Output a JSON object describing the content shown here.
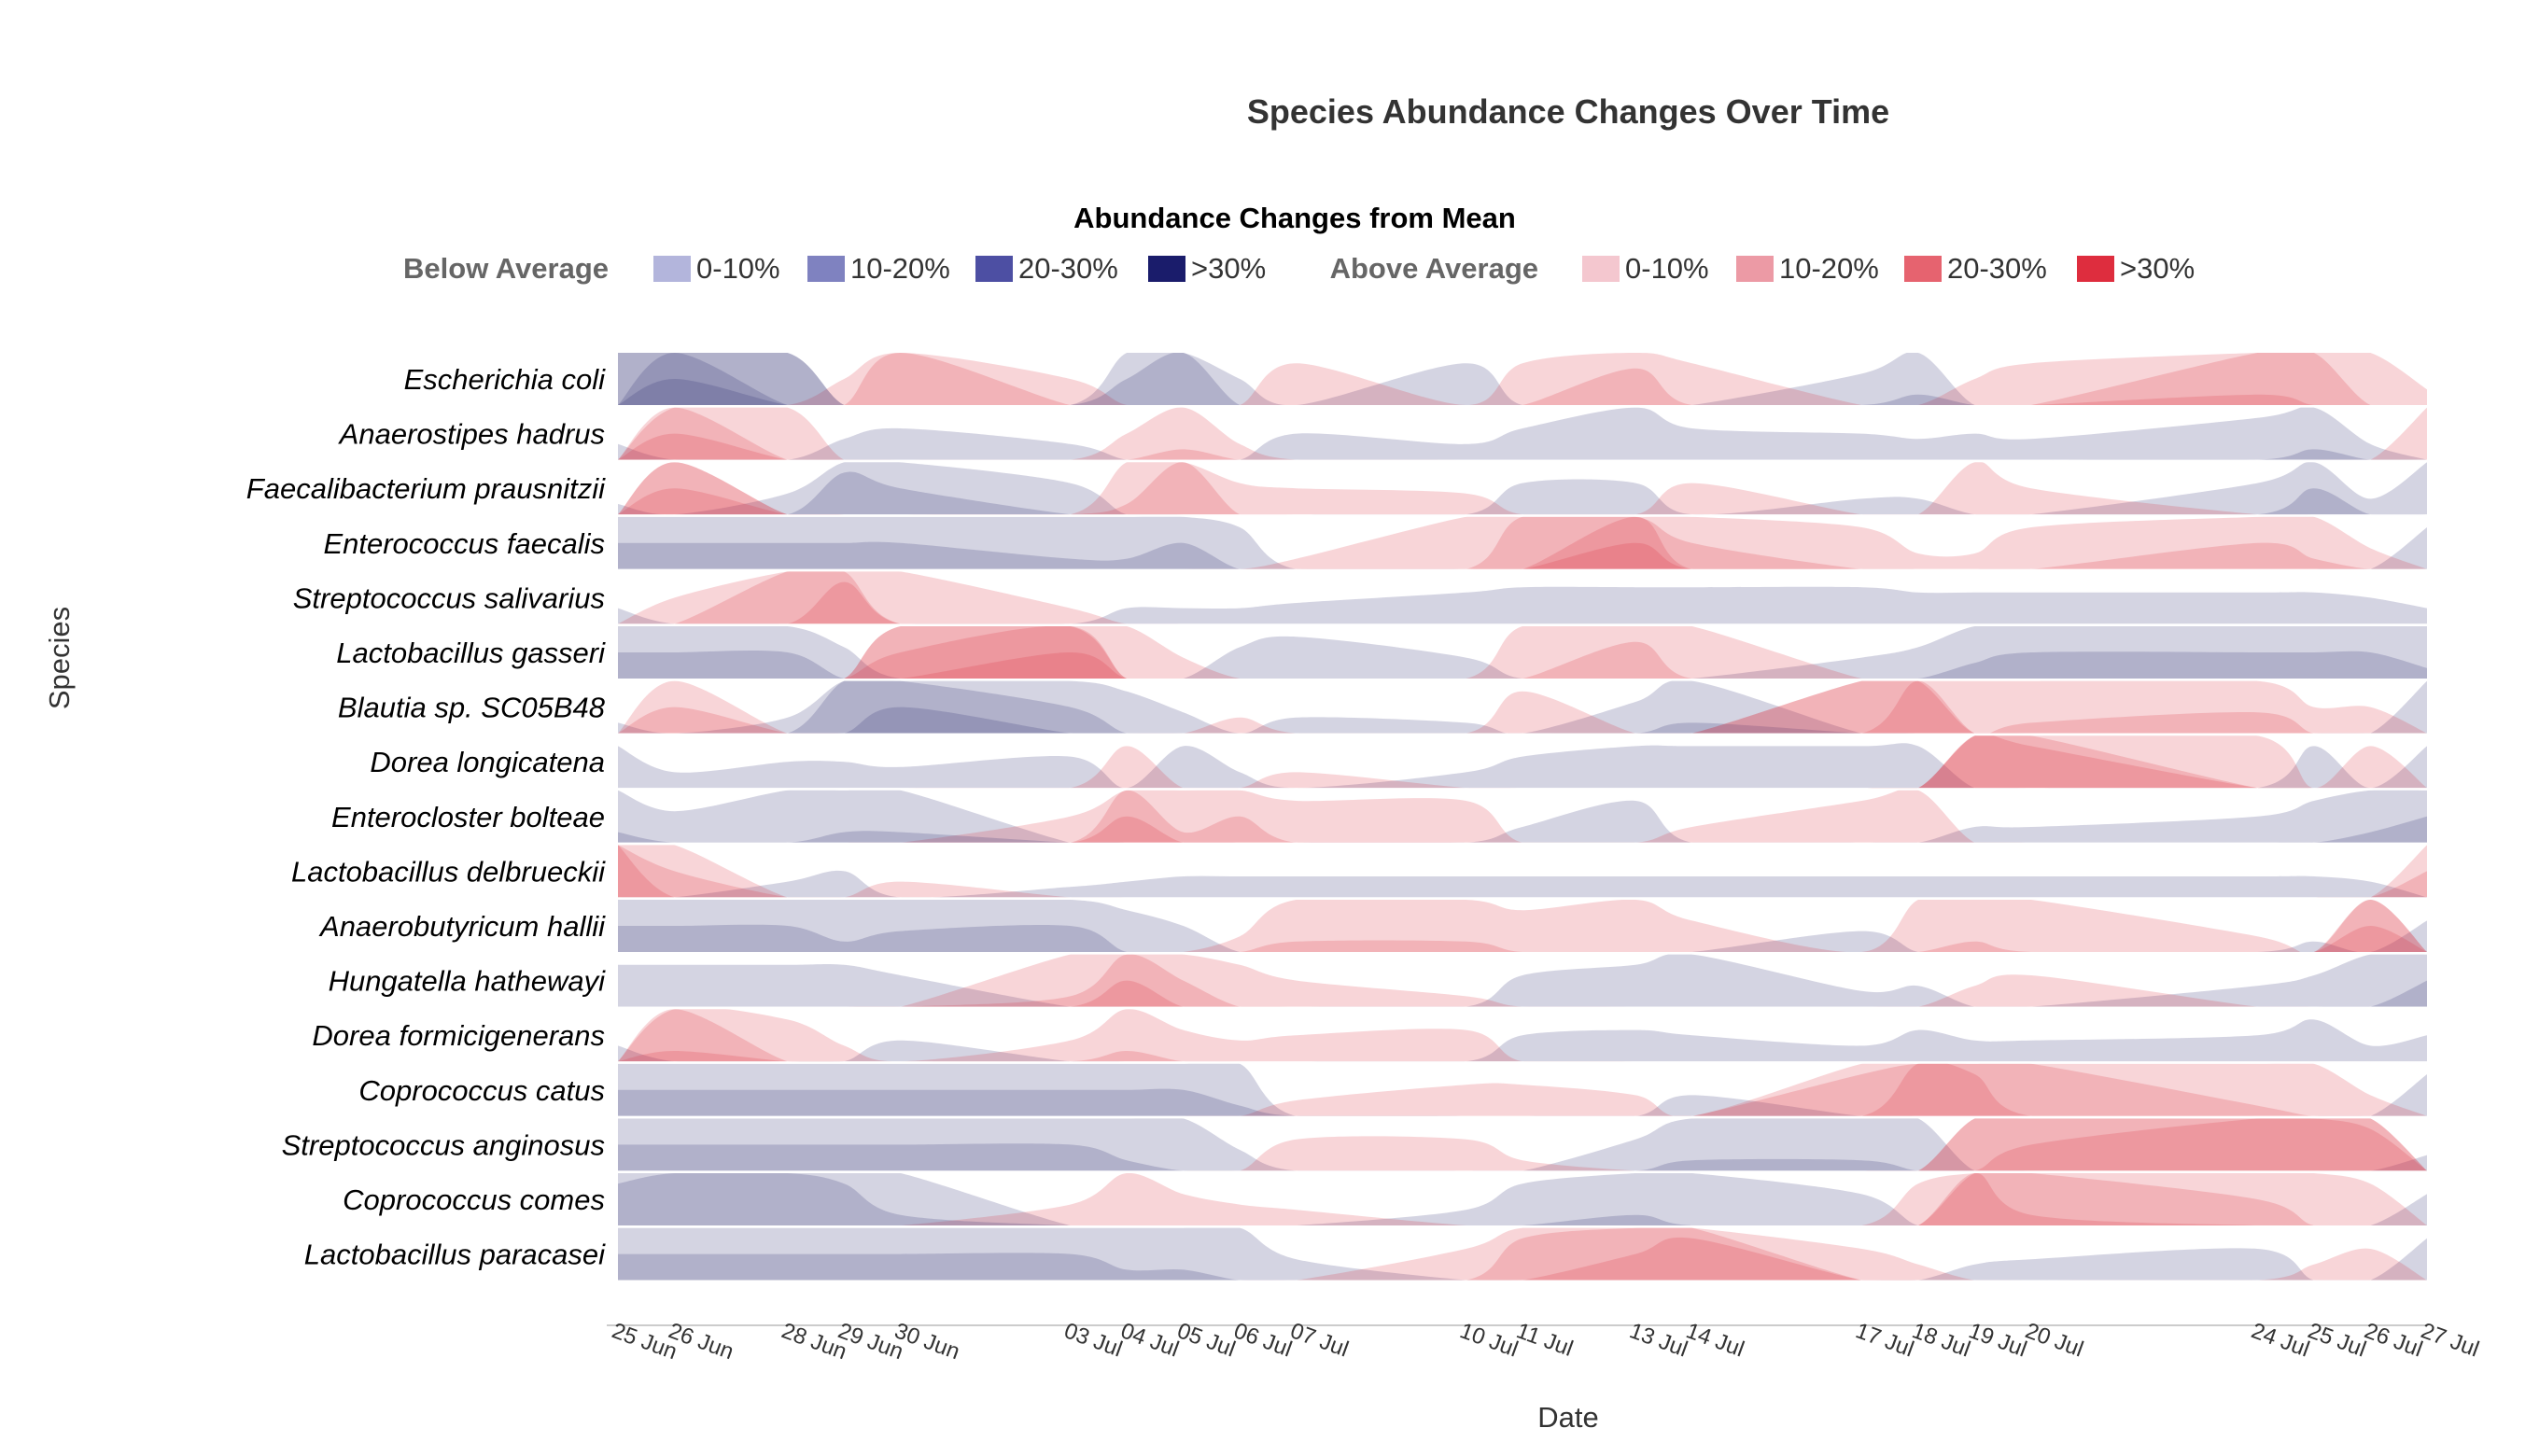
{
  "chart_data": {
    "type": "horizon",
    "title": "Species Abundance Changes Over Time",
    "xlabel": "Date",
    "ylabel": "Species",
    "legend": {
      "title": "Abundance Changes from Mean",
      "placement": "top",
      "groups": [
        {
          "label": "Below Average",
          "entries": [
            {
              "label": "0-10%",
              "color": "#b3b5dc"
            },
            {
              "label": "10-20%",
              "color": "#7f82c0"
            },
            {
              "label": "20-30%",
              "color": "#4d4fa3"
            },
            {
              "label": ">30%",
              "color": "#1a1c6b"
            }
          ]
        },
        {
          "label": "Above Average",
          "entries": [
            {
              "label": "0-10%",
              "color": "#f4c7cf"
            },
            {
              "label": "10-20%",
              "color": "#ec9aa5"
            },
            {
              "label": "20-30%",
              "color": "#e6636f"
            },
            {
              "label": ">30%",
              "color": "#de2d3e"
            }
          ]
        }
      ]
    },
    "colors": {
      "neg_band": "#272a6e",
      "pos_band": "#de2d3e"
    },
    "x_ticks": [
      "25 Jun",
      "26 Jun",
      "28 Jun",
      "29 Jun",
      "30 Jun",
      "03 Jul",
      "04 Jul",
      "05 Jul",
      "06 Jul",
      "07 Jul",
      "10 Jul",
      "11 Jul",
      "13 Jul",
      "14 Jul",
      "17 Jul",
      "18 Jul",
      "19 Jul",
      "20 Jul",
      "24 Jul",
      "25 Jul",
      "26 Jul",
      "27 Jul"
    ],
    "dates": [
      "2023-06-25",
      "2023-06-26",
      "2023-06-28",
      "2023-06-29",
      "2023-06-30",
      "2023-07-03",
      "2023-07-04",
      "2023-07-05",
      "2023-07-06",
      "2023-07-07",
      "2023-07-10",
      "2023-07-11",
      "2023-07-13",
      "2023-07-14",
      "2023-07-17",
      "2023-07-18",
      "2023-07-19",
      "2023-07-20",
      "2023-07-24",
      "2023-07-25",
      "2023-07-26",
      "2023-07-27"
    ],
    "series": [
      {
        "name": "Escherichia coli",
        "values": [
          -20,
          -35,
          -20,
          5,
          20,
          5,
          -15,
          -20,
          -5,
          8,
          -8,
          8,
          17,
          8,
          -6,
          -12,
          5,
          8,
          22,
          20,
          10,
          3
        ]
      },
      {
        "name": "Anaerostipes hadrus",
        "values": [
          -3,
          25,
          10,
          -4,
          -6,
          -3,
          5,
          12,
          3,
          -5,
          -3,
          -6,
          -10,
          -6,
          -5,
          -4,
          -5,
          -4,
          -8,
          -12,
          -3,
          10
        ]
      },
      {
        "name": "Faecalibacterium prausnitzii",
        "values": [
          -2,
          25,
          -4,
          -18,
          -15,
          -6,
          12,
          20,
          6,
          5,
          4,
          -6,
          -6,
          6,
          -3,
          -3,
          10,
          5,
          -6,
          -15,
          -3,
          -10
        ]
      },
      {
        "name": "Enterococcus faecalis",
        "values": [
          -15,
          -15,
          -15,
          -15,
          -15,
          -12,
          -12,
          -15,
          -8,
          2,
          10,
          20,
          35,
          15,
          8,
          3,
          3,
          8,
          15,
          12,
          4,
          -8
        ]
      },
      {
        "name": "Streptococcus salivarius",
        "values": [
          -3,
          5,
          20,
          28,
          10,
          3,
          -3,
          -3,
          -3,
          -4,
          -6,
          -7,
          -7,
          -7,
          -7,
          -6,
          -6,
          -6,
          -6,
          -6,
          -5,
          -3
        ]
      },
      {
        "name": "Lactobacillus gasseri",
        "values": [
          -15,
          -15,
          -15,
          -6,
          25,
          35,
          10,
          4,
          -6,
          -8,
          -4,
          10,
          17,
          10,
          -4,
          -6,
          -13,
          -15,
          -15,
          -15,
          -15,
          -12
        ]
      },
      {
        "name": "Blautia sp. SC05B48",
        "values": [
          -2,
          15,
          -3,
          -20,
          -25,
          -15,
          -8,
          -4,
          3,
          -3,
          -2,
          8,
          -6,
          -12,
          20,
          30,
          10,
          12,
          14,
          5,
          5,
          -10
        ]
      },
      {
        "name": "Dorea longicatena",
        "values": [
          -8,
          -3,
          -5,
          -5,
          -4,
          -6,
          8,
          -8,
          -3,
          3,
          -3,
          -6,
          -8,
          -8,
          -8,
          -8,
          30,
          28,
          10,
          -8,
          8,
          -8
        ]
      },
      {
        "name": "Enterocloster bolteae",
        "values": [
          -12,
          -6,
          -10,
          -12,
          -12,
          5,
          25,
          12,
          15,
          8,
          8,
          -3,
          -8,
          3,
          8,
          10,
          -3,
          -3,
          -5,
          -8,
          -12,
          -15
        ]
      },
      {
        "name": "Lactobacillus delbrueckii",
        "values": [
          30,
          15,
          -3,
          -5,
          3,
          -2,
          -3,
          -4,
          -4,
          -4,
          -4,
          -4,
          -4,
          -4,
          -4,
          -4,
          -4,
          -4,
          -4,
          -4,
          -3,
          15
        ]
      },
      {
        "name": "Anaerobutyricum hallii",
        "values": [
          -15,
          -15,
          -15,
          -12,
          -14,
          -15,
          -8,
          -5,
          3,
          12,
          12,
          8,
          10,
          6,
          -4,
          10,
          12,
          10,
          3,
          -2,
          25,
          -6
        ]
      },
      {
        "name": "Hungatella hathewayi",
        "values": [
          -8,
          -8,
          -8,
          -8,
          -6,
          12,
          25,
          15,
          8,
          5,
          2,
          -6,
          -8,
          -10,
          -3,
          -4,
          4,
          6,
          -4,
          -6,
          -10,
          -15
        ]
      },
      {
        "name": "Dorea formicigenerans",
        "values": [
          -3,
          22,
          8,
          3,
          -4,
          4,
          12,
          6,
          4,
          5,
          6,
          -5,
          -6,
          -5,
          -3,
          -6,
          -4,
          -4,
          -5,
          -8,
          -3,
          -5
        ]
      },
      {
        "name": "Coprococcus catus",
        "values": [
          -15,
          -15,
          -15,
          -15,
          -15,
          -15,
          -15,
          -15,
          -12,
          3,
          6,
          6,
          4,
          -4,
          18,
          30,
          28,
          20,
          12,
          10,
          4,
          -8
        ]
      },
      {
        "name": "Streptococcus anginosus",
        "values": [
          -15,
          -15,
          -15,
          -15,
          -15,
          -15,
          -12,
          -10,
          -4,
          6,
          6,
          2,
          -6,
          -12,
          -12,
          -10,
          20,
          25,
          30,
          30,
          28,
          -3
        ]
      },
      {
        "name": "Coprococcus comes",
        "values": [
          -18,
          -20,
          -20,
          -18,
          -12,
          4,
          10,
          6,
          4,
          3,
          -3,
          -8,
          -12,
          -10,
          -6,
          8,
          30,
          22,
          15,
          10,
          8,
          -6
        ]
      },
      {
        "name": "Lactobacillus paracasei",
        "values": [
          -15,
          -15,
          -15,
          -15,
          -15,
          -15,
          -12,
          -12,
          -10,
          -4,
          6,
          18,
          25,
          28,
          6,
          3,
          -3,
          -4,
          -6,
          3,
          6,
          -8
        ]
      }
    ]
  }
}
